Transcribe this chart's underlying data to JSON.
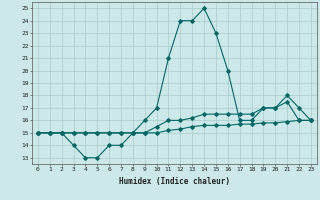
{
  "xlabel": "Humidex (Indice chaleur)",
  "xlim": [
    -0.5,
    23.5
  ],
  "ylim": [
    12.5,
    25.5
  ],
  "yticks": [
    13,
    14,
    15,
    16,
    17,
    18,
    19,
    20,
    21,
    22,
    23,
    24,
    25
  ],
  "xticks": [
    0,
    1,
    2,
    3,
    4,
    5,
    6,
    7,
    8,
    9,
    10,
    11,
    12,
    13,
    14,
    15,
    16,
    17,
    18,
    19,
    20,
    21,
    22,
    23
  ],
  "bg_color": "#cce8e8",
  "grid_color": "#aacccc",
  "line_color": "#006666",
  "series": [
    {
      "x": [
        0,
        1,
        2,
        3,
        4,
        5,
        6,
        7,
        8,
        9,
        10,
        11,
        12,
        13,
        14,
        15,
        16,
        17,
        18,
        19,
        20,
        21,
        22,
        23
      ],
      "y": [
        15,
        15,
        15,
        14,
        13,
        13,
        14,
        14,
        15,
        16,
        17,
        21,
        24,
        24,
        25,
        23,
        20,
        16,
        16,
        17,
        17,
        18,
        17,
        16
      ]
    },
    {
      "x": [
        0,
        1,
        2,
        3,
        4,
        5,
        6,
        7,
        8,
        9,
        10,
        11,
        12,
        13,
        14,
        15,
        16,
        17,
        18,
        19,
        20,
        21,
        22,
        23
      ],
      "y": [
        15,
        15,
        15,
        15,
        15,
        15,
        15,
        15,
        15,
        15,
        15.5,
        16,
        16,
        16.2,
        16.5,
        16.5,
        16.5,
        16.5,
        16.5,
        17,
        17,
        17.5,
        16,
        16
      ]
    },
    {
      "x": [
        0,
        1,
        2,
        3,
        4,
        5,
        6,
        7,
        8,
        9,
        10,
        11,
        12,
        13,
        14,
        15,
        16,
        17,
        18,
        19,
        20,
        21,
        22,
        23
      ],
      "y": [
        15,
        15,
        15,
        15,
        15,
        15,
        15,
        15,
        15,
        15,
        15,
        15.2,
        15.3,
        15.5,
        15.6,
        15.6,
        15.6,
        15.7,
        15.7,
        15.8,
        15.8,
        15.9,
        16,
        16
      ]
    }
  ]
}
